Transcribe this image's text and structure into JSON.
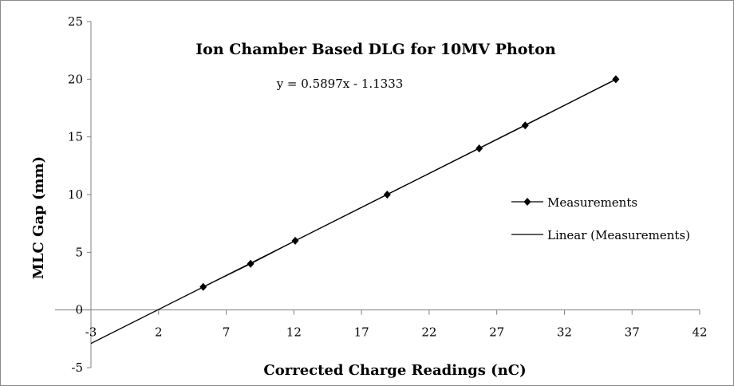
{
  "chart_data": {
    "type": "scatter",
    "title": "Ion Chamber Based DLG for 10MV Photon",
    "xlabel": "Corrected Charge Readings (nC)",
    "ylabel": "MLC Gap (mm)",
    "xlim": [
      -3,
      42
    ],
    "ylim": [
      -5,
      25
    ],
    "xticks": [
      -3,
      2,
      7,
      12,
      17,
      22,
      27,
      32,
      37,
      42
    ],
    "yticks": [
      -5,
      0,
      5,
      10,
      15,
      20,
      25
    ],
    "grid": false,
    "legend_position": "right",
    "series": [
      {
        "name": "Measurements",
        "marker": "diamond",
        "x": [
          5.3,
          8.8,
          12.1,
          18.9,
          25.7,
          29.1,
          35.8
        ],
        "y": [
          2,
          4,
          6,
          10,
          14,
          16,
          20
        ]
      }
    ],
    "trendline": {
      "name": "Linear (Measurements)",
      "slope": 0.5897,
      "intercept": -1.1333,
      "x_range": [
        -3,
        35.8
      ],
      "equation_label": "y = 0.5897x - 1.1333"
    },
    "colors": {
      "series": "#000000",
      "axis": "#7f7f7f",
      "frame": "#8c8c8c"
    }
  }
}
